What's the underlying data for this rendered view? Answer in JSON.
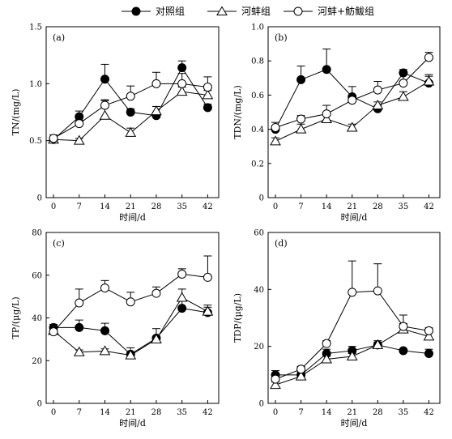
{
  "legend": {
    "items": [
      {
        "label": "对照组",
        "marker": "filled-circle"
      },
      {
        "label": "河蚌组",
        "marker": "open-triangle"
      },
      {
        "label": "河蚌+鲂鲅组",
        "marker": "open-circle"
      }
    ]
  },
  "colors": {
    "ink": "#000000",
    "fill_open": "#ffffff"
  },
  "chart_data": [
    {
      "type": "line",
      "panel_label": "(a)",
      "ylabel": "TN/(mg/L)",
      "xlabel": "时间/d",
      "x": [
        0,
        7,
        14,
        21,
        28,
        35,
        42
      ],
      "xlim": [
        -2,
        45
      ],
      "ylim": [
        0,
        1.5
      ],
      "yticks": [
        0,
        0.5,
        1.0,
        1.5
      ],
      "ytick_labels": [
        "0",
        "0.5",
        "1.0",
        "1.5"
      ],
      "series": [
        {
          "name": "对照组",
          "values": [
            0.51,
            0.71,
            1.04,
            0.75,
            0.72,
            1.14,
            0.79
          ],
          "errors": [
            0.02,
            0.05,
            0.13,
            0.03,
            0.03,
            0.06,
            0.03
          ]
        },
        {
          "name": "河蚌组",
          "values": [
            0.51,
            0.5,
            0.72,
            0.57,
            0.76,
            0.93,
            0.9
          ],
          "errors": [
            0.02,
            0.02,
            0.13,
            0.04,
            0.04,
            0.04,
            0.04
          ]
        },
        {
          "name": "河蚌+鲂鲅组",
          "values": [
            0.52,
            0.65,
            0.81,
            0.89,
            1.0,
            1.0,
            0.97
          ],
          "errors": [
            0.03,
            0.03,
            0.05,
            0.09,
            0.1,
            0.09,
            0.09
          ]
        }
      ]
    },
    {
      "type": "line",
      "panel_label": "(b)",
      "ylabel": "TDN/(mg/L)",
      "xlabel": "时间/d",
      "x": [
        0,
        7,
        14,
        21,
        28,
        35,
        42
      ],
      "xlim": [
        -2,
        45
      ],
      "ylim": [
        0,
        1.0
      ],
      "yticks": [
        0,
        0.2,
        0.4,
        0.6,
        0.8,
        1.0
      ],
      "ytick_labels": [
        "0",
        "0.2",
        "0.4",
        "0.6",
        "0.8",
        "1.0"
      ],
      "series": [
        {
          "name": "对照组",
          "values": [
            0.4,
            0.69,
            0.75,
            0.59,
            0.52,
            0.73,
            0.67
          ],
          "errors": [
            0.02,
            0.08,
            0.12,
            0.06,
            0.02,
            0.02,
            0.05
          ]
        },
        {
          "name": "河蚌组",
          "values": [
            0.33,
            0.4,
            0.46,
            0.41,
            0.54,
            0.59,
            0.68
          ],
          "errors": [
            0.02,
            0.03,
            0.04,
            0.02,
            0.02,
            0.03,
            0.03
          ]
        },
        {
          "name": "河蚌+鲂鲅组",
          "values": [
            0.41,
            0.46,
            0.49,
            0.57,
            0.63,
            0.67,
            0.82
          ],
          "errors": [
            0.03,
            0.02,
            0.05,
            0.03,
            0.05,
            0.06,
            0.03
          ]
        }
      ]
    },
    {
      "type": "line",
      "panel_label": "(c)",
      "ylabel": "TP/(μg/L)",
      "xlabel": "时间/d",
      "x": [
        0,
        7,
        14,
        21,
        28,
        35,
        42
      ],
      "xlim": [
        -2,
        45
      ],
      "ylim": [
        0,
        80
      ],
      "yticks": [
        0,
        20,
        40,
        60,
        80
      ],
      "ytick_labels": [
        "0",
        "20",
        "40",
        "60",
        "80"
      ],
      "series": [
        {
          "name": "对照组",
          "values": [
            35.5,
            35.5,
            34.0,
            23.0,
            30.5,
            44.5,
            42.5
          ],
          "errors": [
            1.5,
            3.5,
            3.5,
            3.0,
            4.5,
            4.0,
            3.5
          ]
        },
        {
          "name": "河蚌组",
          "values": [
            34.0,
            24.0,
            24.5,
            22.5,
            30.0,
            49.5,
            43.0
          ],
          "errors": [
            1.0,
            1.0,
            1.0,
            1.5,
            1.5,
            4.0,
            2.0
          ]
        },
        {
          "name": "河蚌+鲂鲅组",
          "values": [
            33.5,
            47.0,
            54.0,
            47.5,
            51.5,
            60.5,
            59.0
          ],
          "errors": [
            1.0,
            6.5,
            3.5,
            4.5,
            3.0,
            2.5,
            10.0
          ]
        }
      ]
    },
    {
      "type": "line",
      "panel_label": "(d)",
      "ylabel": "TDP/(μg/L)",
      "xlabel": "时间/d",
      "x": [
        0,
        7,
        14,
        21,
        28,
        35,
        42
      ],
      "xlim": [
        -2,
        45
      ],
      "ylim": [
        0,
        60
      ],
      "yticks": [
        0,
        20,
        40,
        60
      ],
      "ytick_labels": [
        "0",
        "20",
        "40",
        "60"
      ],
      "series": [
        {
          "name": "对照组",
          "values": [
            10.0,
            10.0,
            17.5,
            18.5,
            20.5,
            18.5,
            17.5
          ],
          "errors": [
            1.5,
            1.0,
            1.5,
            1.5,
            1.5,
            0.5,
            1.5
          ]
        },
        {
          "name": "河蚌组",
          "values": [
            6.5,
            9.5,
            15.5,
            16.5,
            20.5,
            26.0,
            23.5
          ],
          "errors": [
            1.0,
            1.0,
            1.0,
            1.0,
            1.0,
            2.0,
            1.5
          ]
        },
        {
          "name": "河蚌+鲂鲅组",
          "values": [
            8.5,
            12.0,
            21.0,
            39.0,
            39.5,
            27.0,
            25.5
          ],
          "errors": [
            1.0,
            1.0,
            1.0,
            11.0,
            9.5,
            4.0,
            1.0
          ]
        }
      ]
    }
  ]
}
